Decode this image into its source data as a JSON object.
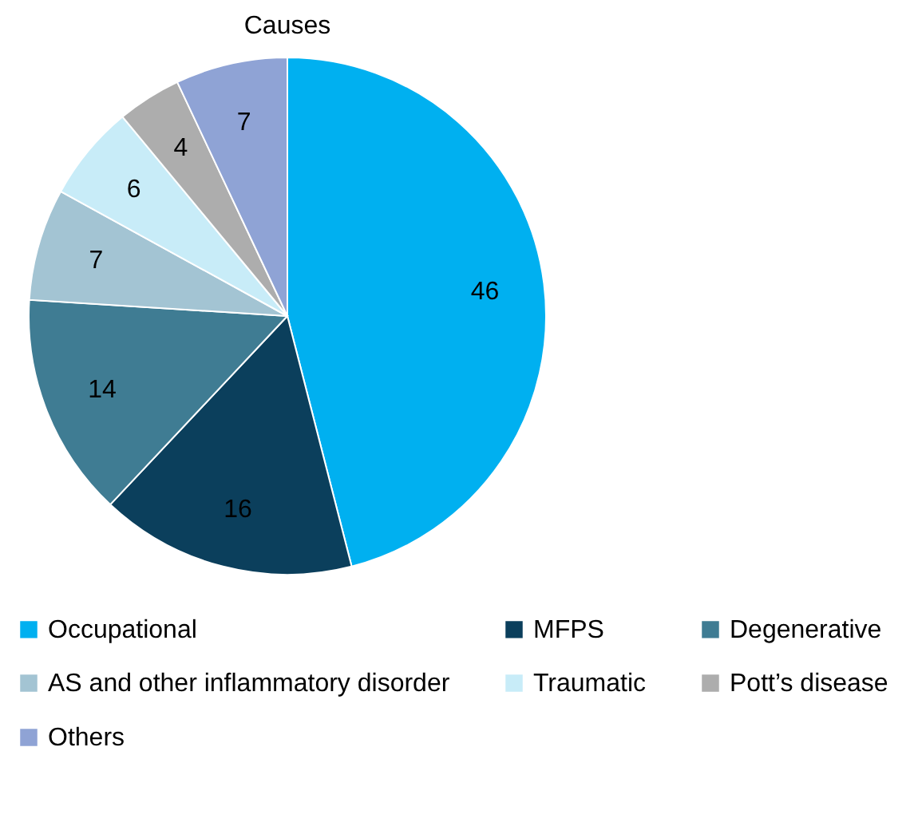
{
  "chart_data": {
    "type": "pie",
    "title": "Causes",
    "categories": [
      "Occupational",
      "MFPS",
      "Degenerative",
      "AS and other inflammatory disorder",
      "Traumatic",
      "Pott’s disease",
      "Others"
    ],
    "values": [
      46,
      16,
      14,
      7,
      6,
      4,
      7
    ],
    "colors": [
      "#00b0f0",
      "#0b3f5c",
      "#3f7c93",
      "#a3c4d3",
      "#c8ecf8",
      "#adadad",
      "#8fa3d5"
    ],
    "data_labels": true,
    "legend": "bottom"
  }
}
